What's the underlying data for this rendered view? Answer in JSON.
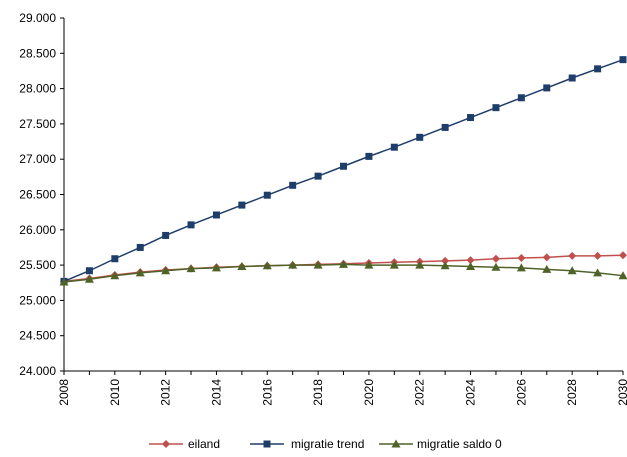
{
  "chart_data": {
    "type": "line",
    "x": [
      2008,
      2009,
      2010,
      2011,
      2012,
      2013,
      2014,
      2015,
      2016,
      2017,
      2018,
      2019,
      2020,
      2021,
      2022,
      2023,
      2024,
      2025,
      2026,
      2027,
      2028,
      2029,
      2030
    ],
    "x_tick_labels": [
      "2008",
      "2010",
      "2012",
      "2014",
      "2016",
      "2018",
      "2020",
      "2022",
      "2024",
      "2026",
      "2028",
      "2030"
    ],
    "ylim": [
      24000,
      29000
    ],
    "y_tick_labels": [
      "24.000",
      "24.500",
      "25.000",
      "25.500",
      "26.000",
      "26.500",
      "27.000",
      "27.500",
      "28.000",
      "28.500",
      "29.000"
    ],
    "y_ticks": [
      24000,
      24500,
      25000,
      25500,
      26000,
      26500,
      27000,
      27500,
      28000,
      28500,
      29000
    ],
    "grid": false,
    "legend_position": "bottom",
    "series": [
      {
        "name": "eiland",
        "color": "#C0504D",
        "marker": "diamond",
        "values": [
          25270,
          25310,
          25360,
          25400,
          25430,
          25450,
          25470,
          25480,
          25490,
          25500,
          25510,
          25520,
          25530,
          25540,
          25550,
          25560,
          25570,
          25590,
          25600,
          25610,
          25630,
          25630,
          25640
        ]
      },
      {
        "name": "migratie trend",
        "color": "#1F3D6A",
        "marker": "square",
        "values": [
          25270,
          25420,
          25590,
          25750,
          25920,
          26070,
          26210,
          26350,
          26490,
          26630,
          26760,
          26900,
          27040,
          27170,
          27310,
          27450,
          27590,
          27730,
          27870,
          28010,
          28150,
          28280,
          28410
        ]
      },
      {
        "name": "migratie saldo 0",
        "color": "#4F6228",
        "marker": "triangle",
        "values": [
          25260,
          25300,
          25350,
          25390,
          25420,
          25450,
          25460,
          25480,
          25490,
          25500,
          25500,
          25510,
          25500,
          25500,
          25500,
          25490,
          25480,
          25470,
          25460,
          25440,
          25420,
          25390,
          25350
        ]
      }
    ]
  }
}
